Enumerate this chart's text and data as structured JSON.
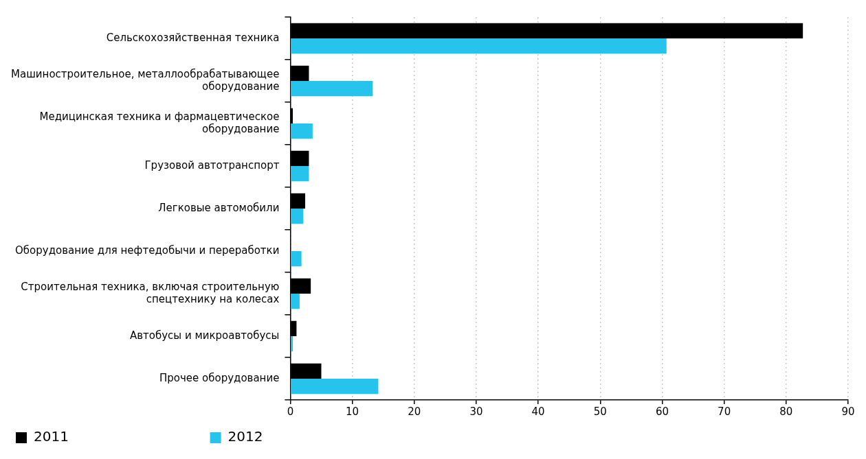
{
  "chart_data": {
    "type": "bar",
    "orientation": "horizontal",
    "categories": [
      "Сельскохозяйственная техника",
      "Машиностроительное, металлообрабатывающее оборудование",
      "Медицинская техника и фармацевтическое оборудование",
      "Грузовой автотранспорт",
      "Легковые автомобили",
      "Оборудование для нефтедобычи и переработки",
      "Строительная техника, включая строительную спецтехнику на колесах",
      "Автобусы и микроавтобусы",
      "Прочее оборудование"
    ],
    "series": [
      {
        "name": "2011",
        "color": "#000000",
        "values": [
          82.7,
          3.0,
          0.4,
          3.0,
          2.4,
          null,
          3.3,
          1.0,
          5.0
        ]
      },
      {
        "name": "2012",
        "color": "#26c4ec",
        "values": [
          60.7,
          13.3,
          3.6,
          3.0,
          2.1,
          1.8,
          1.5,
          0.4,
          14.2
        ]
      }
    ],
    "xlim": [
      0,
      90
    ],
    "xticks": [
      0,
      10,
      20,
      30,
      40,
      50,
      60,
      70,
      80,
      90
    ],
    "grid": "x",
    "legend": "bottom left"
  }
}
